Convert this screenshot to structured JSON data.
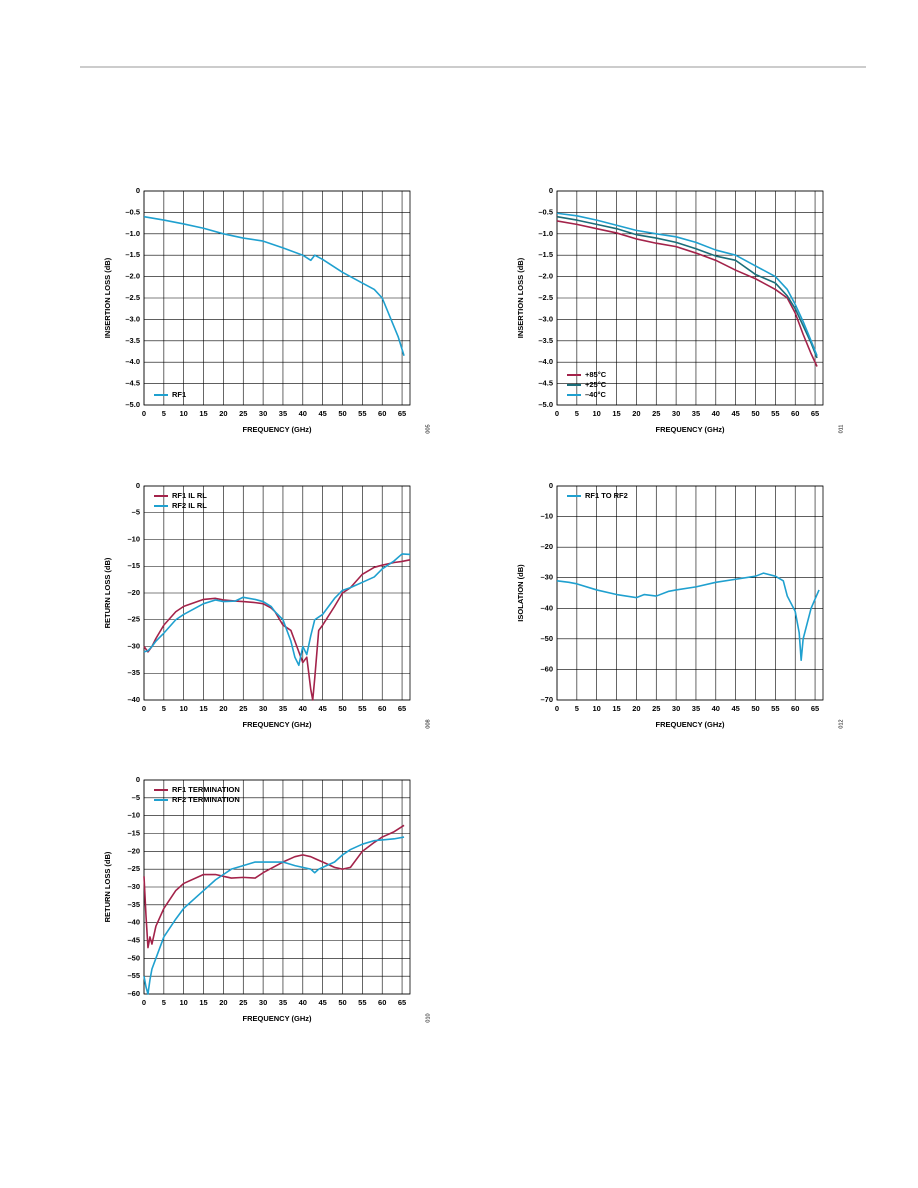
{
  "chart_data": [
    {
      "type": "line",
      "x_label": "FREQUENCY (GHz)",
      "y_label": "INSERTION LOSS (dB)",
      "figure_number": "005",
      "x": [
        0,
        5,
        10,
        15,
        20,
        25,
        30,
        35,
        40,
        42,
        43,
        45,
        50,
        55,
        58,
        60,
        62,
        64,
        65.5
      ],
      "series": [
        {
          "name": "RF1",
          "color": "#1fa0cf",
          "values": [
            -0.6,
            -0.68,
            -0.77,
            -0.87,
            -1.0,
            -1.1,
            -1.17,
            -1.33,
            -1.5,
            -1.62,
            -1.5,
            -1.6,
            -1.9,
            -2.15,
            -2.3,
            -2.5,
            -2.95,
            -3.4,
            -3.85
          ]
        }
      ],
      "xlim": [
        0,
        67
      ],
      "ylim": [
        -5,
        0
      ],
      "xticks": [
        0,
        5,
        10,
        15,
        20,
        25,
        30,
        35,
        40,
        45,
        50,
        55,
        60,
        65
      ],
      "yticks": [
        0,
        {
          "value": -0.5,
          "label": "–0.5"
        },
        {
          "value": -1,
          "label": "–1.0"
        },
        {
          "value": -1.5,
          "label": "–1.5"
        },
        {
          "value": -2,
          "label": "–2.0"
        },
        {
          "value": -2.5,
          "label": "–2.5"
        },
        {
          "value": -3,
          "label": "–3.0"
        },
        {
          "value": -3.5,
          "label": "–3.5"
        },
        {
          "value": -4,
          "label": "–4.0"
        },
        {
          "value": -4.5,
          "label": "–4.5"
        },
        {
          "value": -5,
          "label": "–5.0"
        }
      ],
      "grid": true,
      "legend": "lower left"
    },
    {
      "type": "line",
      "x_label": "FREQUENCY (GHz)",
      "y_label": "INSERTION LOSS (dB)",
      "figure_number": "011",
      "x": [
        0,
        5,
        10,
        15,
        20,
        25,
        30,
        35,
        40,
        45,
        50,
        55,
        58,
        60,
        62,
        64,
        65.5
      ],
      "series": [
        {
          "name": "+85°C",
          "color": "#a3234a",
          "values": [
            -0.7,
            -0.78,
            -0.88,
            -0.98,
            -1.12,
            -1.22,
            -1.3,
            -1.45,
            -1.62,
            -1.85,
            -2.05,
            -2.3,
            -2.5,
            -2.85,
            -3.35,
            -3.8,
            -4.1
          ]
        },
        {
          "name": "+25°C",
          "color": "#1b6e7a",
          "values": [
            -0.6,
            -0.68,
            -0.78,
            -0.88,
            -1.02,
            -1.1,
            -1.2,
            -1.35,
            -1.52,
            -1.62,
            -1.95,
            -2.15,
            -2.45,
            -2.75,
            -3.15,
            -3.55,
            -3.9
          ]
        },
        {
          "name": "–40°C",
          "color": "#1fa0cf",
          "values": [
            -0.52,
            -0.58,
            -0.68,
            -0.8,
            -0.92,
            -1.0,
            -1.07,
            -1.2,
            -1.38,
            -1.5,
            -1.75,
            -2.0,
            -2.3,
            -2.65,
            -3.05,
            -3.5,
            -3.85
          ]
        }
      ],
      "xlim": [
        0,
        67
      ],
      "ylim": [
        -5,
        0
      ],
      "xticks": [
        0,
        5,
        10,
        15,
        20,
        25,
        30,
        35,
        40,
        45,
        50,
        55,
        60,
        65
      ],
      "yticks": [
        0,
        {
          "value": -0.5,
          "label": "–0.5"
        },
        {
          "value": -1,
          "label": "–1.0"
        },
        {
          "value": -1.5,
          "label": "–1.5"
        },
        {
          "value": -2,
          "label": "–2.0"
        },
        {
          "value": -2.5,
          "label": "–2.5"
        },
        {
          "value": -3,
          "label": "–3.0"
        },
        {
          "value": -3.5,
          "label": "–3.5"
        },
        {
          "value": -4,
          "label": "–4.0"
        },
        {
          "value": -4.5,
          "label": "–4.5"
        },
        {
          "value": -5,
          "label": "–5.0"
        }
      ],
      "grid": true,
      "legend": "lower left"
    },
    {
      "type": "line",
      "x_label": "FREQUENCY (GHz)",
      "y_label": "RETURN LOSS (dB)",
      "figure_number": "008",
      "x": [
        0,
        1,
        2,
        3,
        5,
        8,
        10,
        15,
        18,
        20,
        23,
        25,
        28,
        30,
        32,
        33,
        35,
        37,
        38,
        39,
        40,
        41,
        42,
        42.5,
        43,
        44,
        45,
        48,
        50,
        52,
        55,
        58,
        60,
        63,
        65,
        67
      ],
      "series": [
        {
          "name": "RF1 IL RL",
          "color": "#a3234a",
          "values": [
            -30,
            -31,
            -30,
            -28.5,
            -26,
            -23.5,
            -22.5,
            -21.2,
            -21,
            -21.3,
            -21.5,
            -21.6,
            -21.8,
            -22,
            -22.8,
            -23.5,
            -26,
            -27,
            -29,
            -31,
            -33,
            -32,
            -38,
            -40,
            -36,
            -27,
            -26,
            -22.5,
            -20,
            -19,
            -16.5,
            -15.2,
            -14.8,
            -14.3,
            -14.1,
            -13.8
          ]
        },
        {
          "name": "RF2 IL RL",
          "color": "#1fa0cf",
          "values": [
            -31,
            -30.8,
            -30,
            -29,
            -27.5,
            -25,
            -24,
            -22,
            -21.3,
            -21.6,
            -21.5,
            -20.8,
            -21.2,
            -21.6,
            -22.5,
            -23.5,
            -25,
            -29,
            -32,
            -33.5,
            -30,
            -31.5,
            -28,
            -26.5,
            -25,
            -24.5,
            -24,
            -21,
            -19.5,
            -19,
            -18,
            -17,
            -15.5,
            -14,
            -12.7,
            -12.8
          ]
        }
      ],
      "xlim": [
        0,
        67
      ],
      "ylim": [
        -40,
        0
      ],
      "xticks": [
        0,
        5,
        10,
        15,
        20,
        25,
        30,
        35,
        40,
        45,
        50,
        55,
        60,
        65
      ],
      "yticks": [
        0,
        {
          "value": -5,
          "label": "–5"
        },
        {
          "value": -10,
          "label": "–10"
        },
        {
          "value": -15,
          "label": "–15"
        },
        {
          "value": -20,
          "label": "–20"
        },
        {
          "value": -25,
          "label": "–25"
        },
        {
          "value": -30,
          "label": "–30"
        },
        {
          "value": -35,
          "label": "–35"
        },
        {
          "value": -40,
          "label": "–40"
        }
      ],
      "grid": true,
      "legend": "upper left"
    },
    {
      "type": "line",
      "x_label": "FREQUENCY (GHz)",
      "y_label": "ISOLATION (dB)",
      "figure_number": "012",
      "x": [
        0,
        3,
        5,
        10,
        15,
        20,
        22,
        25,
        28,
        30,
        35,
        40,
        45,
        50,
        52,
        55,
        57,
        58,
        60,
        61,
        61.5,
        62,
        63,
        64,
        65,
        66
      ],
      "series": [
        {
          "name": "RF1 TO RF2",
          "color": "#1fa0cf",
          "values": [
            -31,
            -31.5,
            -32,
            -34,
            -35.5,
            -36.5,
            -35.5,
            -36,
            -34.5,
            -34,
            -33,
            -31.5,
            -30.5,
            -29.5,
            -28.5,
            -29.5,
            -31,
            -36,
            -41,
            -48,
            -57,
            -50,
            -45,
            -40,
            -37,
            -34
          ]
        }
      ],
      "xlim": [
        0,
        67
      ],
      "ylim": [
        -70,
        0
      ],
      "xticks": [
        0,
        5,
        10,
        15,
        20,
        25,
        30,
        35,
        40,
        45,
        50,
        55,
        60,
        65
      ],
      "yticks": [
        0,
        {
          "value": -10,
          "label": "–10"
        },
        {
          "value": -20,
          "label": "–20"
        },
        {
          "value": -30,
          "label": "–30"
        },
        {
          "value": -40,
          "label": "–40"
        },
        {
          "value": -50,
          "label": "–50"
        },
        {
          "value": -60,
          "label": "–60"
        },
        {
          "value": -70,
          "label": "–70"
        }
      ],
      "grid": true,
      "legend": "upper left"
    },
    {
      "type": "line",
      "x_label": "FREQUENCY (GHz)",
      "y_label": "RETURN LOSS (dB)",
      "figure_number": "010",
      "x": [
        0,
        0.5,
        1,
        1.5,
        2,
        3,
        5,
        8,
        10,
        15,
        18,
        20,
        22,
        25,
        28,
        30,
        35,
        38,
        40,
        42,
        43,
        44,
        45,
        48,
        50,
        52,
        55,
        58,
        60,
        63,
        65.5
      ],
      "series": [
        {
          "name": "RF1 TERMINATION",
          "color": "#a3234a",
          "values": [
            -27,
            -38,
            -47,
            -44,
            -46,
            -41,
            -36,
            -31,
            -29,
            -26.5,
            -26.5,
            -27,
            -27.5,
            -27.3,
            -27.5,
            -26,
            -23,
            -21.5,
            -21,
            -21.5,
            -22,
            -22.5,
            -23,
            -24.5,
            -25,
            -24.5,
            -20,
            -17.5,
            -16,
            -14.5,
            -12.7
          ]
        },
        {
          "name": "RF2 TERMINATION",
          "color": "#1fa0cf",
          "values": [
            -55,
            -58,
            -60,
            -56,
            -53,
            -50,
            -44,
            -39,
            -36,
            -31,
            -28,
            -26.5,
            -25,
            -24,
            -23,
            -23,
            -23,
            -24,
            -24.5,
            -25,
            -26,
            -25,
            -24.5,
            -23,
            -21,
            -19.5,
            -18,
            -17,
            -16.8,
            -16.5,
            -16
          ]
        }
      ],
      "xlim": [
        0,
        67
      ],
      "ylim": [
        -60,
        0
      ],
      "xticks": [
        0,
        5,
        10,
        15,
        20,
        25,
        30,
        35,
        40,
        45,
        50,
        55,
        60,
        65
      ],
      "yticks": [
        0,
        {
          "value": -5,
          "label": "–5"
        },
        {
          "value": -10,
          "label": "–10"
        },
        {
          "value": -15,
          "label": "–15"
        },
        {
          "value": -20,
          "label": "–20"
        },
        {
          "value": -25,
          "label": "–25"
        },
        {
          "value": -30,
          "label": "–30"
        },
        {
          "value": -35,
          "label": "–35"
        },
        {
          "value": -40,
          "label": "–40"
        },
        {
          "value": -45,
          "label": "–45"
        },
        {
          "value": -50,
          "label": "–50"
        },
        {
          "value": -55,
          "label": "–55"
        },
        {
          "value": -60,
          "label": "–60"
        }
      ],
      "grid": true,
      "legend": "upper left"
    }
  ]
}
